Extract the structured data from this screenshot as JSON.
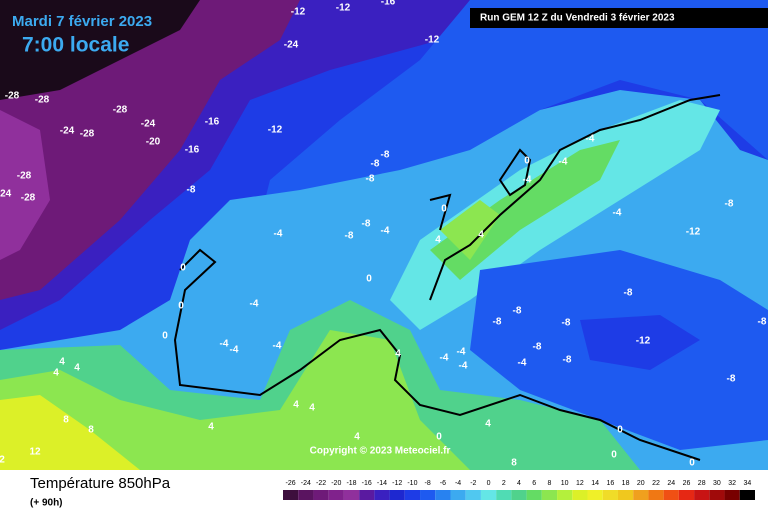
{
  "header": {
    "date": "Mardi 7 février 2023",
    "time": "7:00 locale",
    "run": "Run GEM 12 Z du Vendredi 3 février 2023"
  },
  "copyright": "Copyright © 2023 Meteociel.fr",
  "footer": {
    "title": "Température 850hPa",
    "lead": "(+ 90h)"
  },
  "colorbar": {
    "ticks": [
      -26,
      -24,
      -22,
      -20,
      -18,
      -16,
      -14,
      -12,
      -10,
      -8,
      -6,
      -4,
      -2,
      0,
      2,
      4,
      6,
      8,
      10,
      12,
      14,
      16,
      18,
      20,
      22,
      24,
      26,
      28,
      30,
      32,
      34
    ],
    "colors": [
      "#3d0f3d",
      "#5a1460",
      "#6e1a78",
      "#80228c",
      "#90309c",
      "#5a1aa0",
      "#3a20c0",
      "#1e28d0",
      "#1e3ce6",
      "#1e5af0",
      "#2882f0",
      "#3caaf0",
      "#50c8f0",
      "#64e6e6",
      "#50dcb4",
      "#50d28c",
      "#64dc64",
      "#8ce650",
      "#b4f03c",
      "#dcf028",
      "#f0f028",
      "#f0dc28",
      "#f0c81e",
      "#f0a01e",
      "#f07814",
      "#f05014",
      "#e62814",
      "#c81414",
      "#a00a0a",
      "#780000",
      "#000000"
    ]
  },
  "map_labels": [
    "-12",
    "-12",
    "-16",
    "-12",
    "-24",
    "-28",
    "-28",
    "-28",
    "-24",
    "-28",
    "-24",
    "-16",
    "-20",
    "-16",
    "-12",
    "-28",
    "-28",
    "-24",
    "-8",
    "-8",
    "-8",
    "-8",
    "-4",
    "0",
    "-4",
    "-4",
    "0",
    "-8",
    "-4",
    "-8",
    "-4",
    "4",
    "4",
    "-4",
    "-8",
    "-12",
    "0",
    "0",
    "0",
    "-4",
    "-8",
    "-8",
    "-8",
    "-8",
    "-8",
    "-4",
    "-4",
    "-4",
    "4",
    "0",
    "4",
    "4",
    "4",
    "-4",
    "-4",
    "-8",
    "-12",
    "-8",
    "-4",
    "-4",
    "-8",
    "4",
    "4",
    "8",
    "8",
    "4",
    "4",
    "0",
    "12",
    "2",
    "8",
    "0",
    "0",
    "0",
    "4"
  ]
}
